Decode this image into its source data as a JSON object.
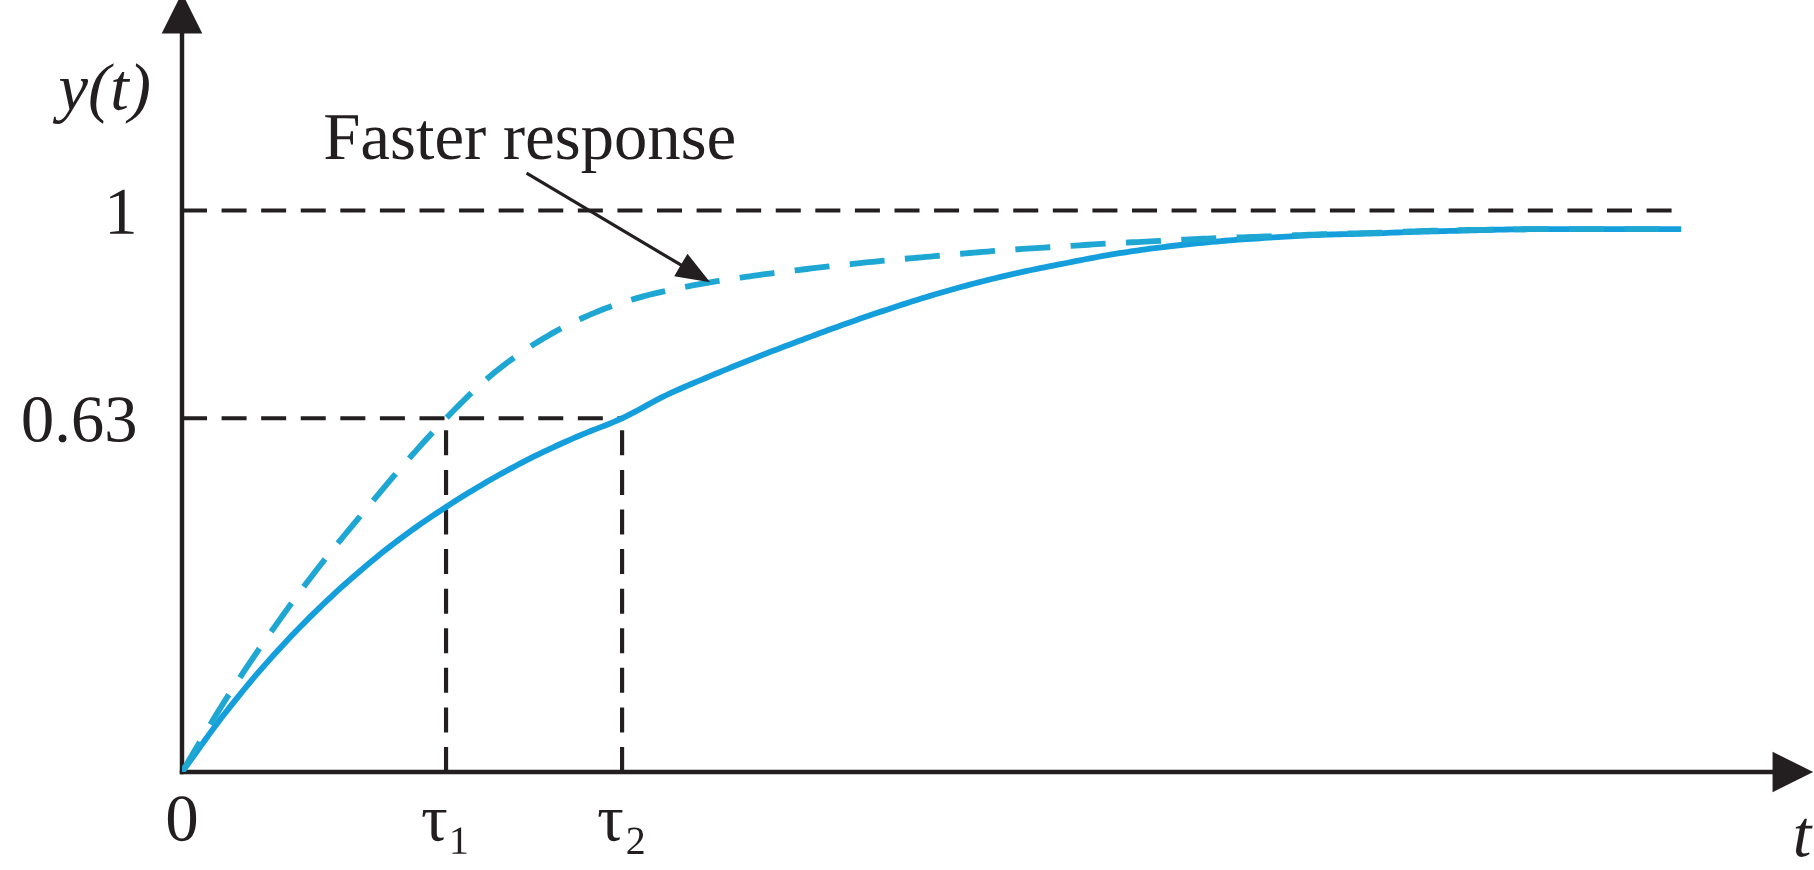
{
  "chart_data": {
    "type": "line",
    "xlabel": "t",
    "ylabel": "y(t)",
    "annotations": [
      "Faster response"
    ],
    "categories": [
      "0",
      null,
      null,
      null,
      null,
      null,
      "τ₁",
      null,
      null,
      null,
      "τ₂",
      null,
      null,
      null,
      null,
      null,
      null,
      null,
      null,
      null,
      null,
      null,
      null,
      null,
      null,
      null,
      null,
      null,
      null,
      null,
      null,
      null,
      null,
      null,
      null
    ],
    "ylim": [
      0,
      1.35
    ],
    "yticks": [
      0.63,
      1
    ],
    "ref_lines": [
      {
        "axis": "y",
        "value": 1,
        "color": "#231f20",
        "line_style": "dashed"
      },
      {
        "axis": "y",
        "value": 0.63,
        "color": "#231f20",
        "line_style": "dashed"
      },
      {
        "axis": "x",
        "value": "τ₁",
        "color": "#231f20",
        "line_style": "dashed"
      },
      {
        "axis": "x",
        "value": "τ₂",
        "color": "#231f20",
        "line_style": "dashed"
      }
    ],
    "series": [
      {
        "color": "#149fdc",
        "line_style": "solid",
        "values": [
          0,
          0.107,
          0.201,
          0.283,
          0.355,
          0.418,
          0.472,
          0.52,
          0.562,
          0.598,
          0.63,
          0.671,
          0.705,
          0.737,
          0.767,
          0.796,
          0.823,
          0.848,
          0.87,
          0.889,
          0.905,
          0.92,
          0.932,
          0.941,
          0.948,
          0.953,
          0.957,
          0.959,
          0.962,
          0.964,
          0.966,
          0.967,
          0.967,
          0.967,
          0.967
        ]
      },
      {
        "color": "#1fa7d4",
        "line_style": "dashed",
        "values": [
          0,
          0.13,
          0.247,
          0.354,
          0.451,
          0.544,
          0.63,
          0.705,
          0.762,
          0.805,
          0.836,
          0.857,
          0.872,
          0.884,
          0.894,
          0.903,
          0.911,
          0.918,
          0.925,
          0.931,
          0.936,
          0.941,
          0.945,
          0.949,
          0.952,
          0.955,
          0.958,
          0.96,
          0.963,
          0.965,
          0.966,
          0.967,
          0.967,
          0.967,
          0.967
        ]
      }
    ]
  }
}
